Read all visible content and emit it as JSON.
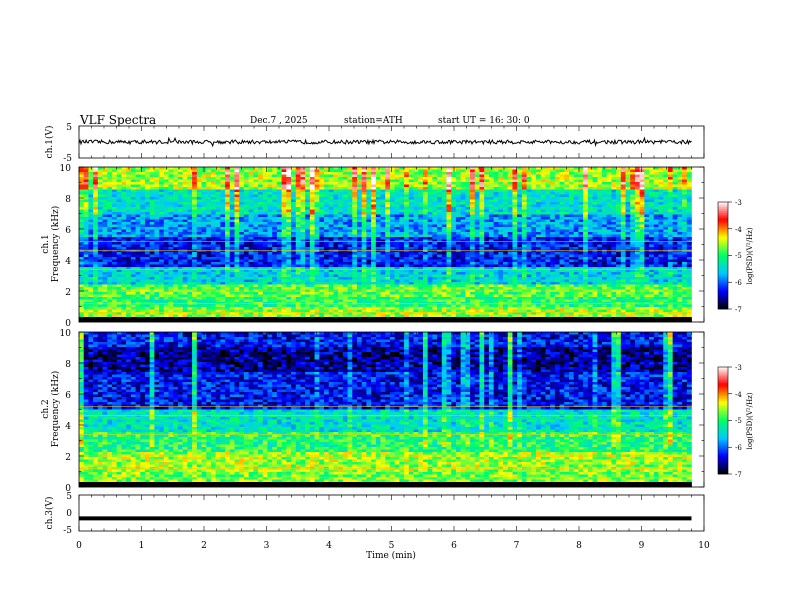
{
  "header": {
    "title": "VLF  Spectra",
    "date": "Dec.7  , 2025",
    "station": "station=ATH",
    "start": "start  UT  =    16: 30: 0"
  },
  "chart_data": [
    {
      "type": "line",
      "name": "ch1-waveform",
      "ylabel": "ch.1(V)",
      "ylim": [
        -5,
        5
      ],
      "y_ticks": [
        "5",
        "-5"
      ],
      "xlim": [
        0,
        10
      ],
      "data_extent_min": 9.8,
      "mean_level": 0.0,
      "noise_amplitude": 1.2
    },
    {
      "type": "heatmap",
      "name": "ch1-spectrogram",
      "ylabel": "ch.1\nFrequency  (kHz)",
      "ylabel_lines": [
        "ch.1",
        "Frequency  (kHz)"
      ],
      "ylim": [
        0,
        10
      ],
      "y_ticks": [
        "0",
        "2",
        "4",
        "6",
        "8",
        "10"
      ],
      "xlim": [
        0,
        10
      ],
      "data_extent_min": 9.8,
      "colorbar": {
        "label": "log(PSD)(V²/Hz)",
        "range": [
          -7,
          -3
        ],
        "ticks": [
          "-3",
          "-4",
          "-5",
          "-6",
          "-7"
        ],
        "colors": [
          "#000000",
          "#0000ff",
          "#00c8ff",
          "#00ff66",
          "#ffff00",
          "#ff0000",
          "#ffffff"
        ]
      },
      "bands": [
        {
          "f_low": 0.0,
          "f_high": 0.35,
          "level": -7.0
        },
        {
          "f_low": 0.35,
          "f_high": 0.9,
          "level": -4.6
        },
        {
          "f_low": 0.9,
          "f_high": 1.6,
          "level": -5.0
        },
        {
          "f_low": 1.6,
          "f_high": 2.4,
          "level": -4.8
        },
        {
          "f_low": 2.4,
          "f_high": 3.5,
          "level": -5.5
        },
        {
          "f_low": 3.5,
          "f_high": 5.5,
          "level": -6.3
        },
        {
          "f_low": 5.5,
          "f_high": 7.0,
          "level": -5.8
        },
        {
          "f_low": 7.0,
          "f_high": 8.5,
          "level": -5.4
        },
        {
          "f_low": 8.5,
          "f_high": 10.0,
          "level": -4.6
        }
      ]
    },
    {
      "type": "heatmap",
      "name": "ch2-spectrogram",
      "ylabel": "ch.2\nFrequency  (kHz)",
      "ylabel_lines": [
        "ch.2",
        "Frequency  (kHz)"
      ],
      "ylim": [
        0,
        10
      ],
      "y_ticks": [
        "0",
        "2",
        "4",
        "6",
        "8",
        "10"
      ],
      "xlim": [
        0,
        10
      ],
      "data_extent_min": 9.8,
      "colorbar": {
        "label": "log(PSD)(V²/Hz)",
        "range": [
          -7,
          -3
        ],
        "ticks": [
          "-3",
          "-4",
          "-5",
          "-6",
          "-7"
        ],
        "colors": [
          "#000000",
          "#0000ff",
          "#00c8ff",
          "#00ff66",
          "#ffff00",
          "#ff0000",
          "#ffffff"
        ]
      },
      "bands": [
        {
          "f_low": 0.0,
          "f_high": 0.35,
          "level": -7.0
        },
        {
          "f_low": 0.35,
          "f_high": 1.0,
          "level": -4.7
        },
        {
          "f_low": 1.0,
          "f_high": 2.2,
          "level": -4.6
        },
        {
          "f_low": 2.2,
          "f_high": 3.5,
          "level": -5.0
        },
        {
          "f_low": 3.5,
          "f_high": 5.0,
          "level": -5.4
        },
        {
          "f_low": 5.0,
          "f_high": 7.5,
          "level": -6.3
        },
        {
          "f_low": 7.5,
          "f_high": 9.0,
          "level": -6.6
        },
        {
          "f_low": 9.0,
          "f_high": 10.0,
          "level": -6.3
        }
      ]
    },
    {
      "type": "line",
      "name": "ch3-waveform",
      "ylabel": "ch.3(V)",
      "ylim": [
        -5,
        5
      ],
      "y_ticks": [
        "5",
        "0",
        "-5"
      ],
      "xlim": [
        0,
        10
      ],
      "data_extent_min": 9.8,
      "mean_level": -1.5,
      "noise_amplitude": 0.0
    }
  ],
  "x_axis": {
    "label": "Time  (min)",
    "ticks": [
      "0",
      "1",
      "2",
      "3",
      "4",
      "5",
      "6",
      "7",
      "8",
      "9",
      "10"
    ]
  }
}
